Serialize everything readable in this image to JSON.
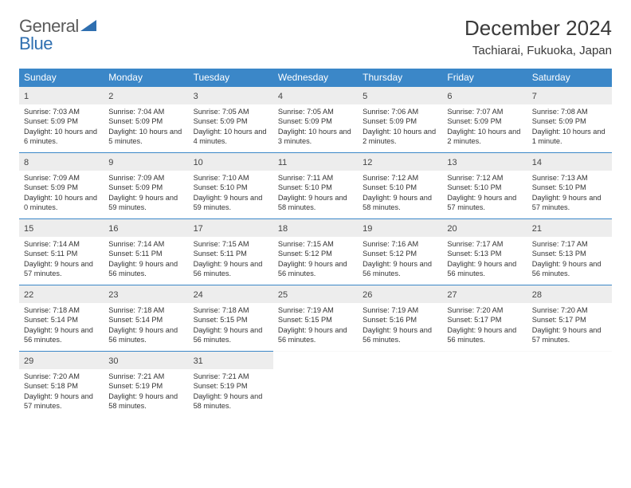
{
  "logo": {
    "text_general": "General",
    "text_blue": "Blue"
  },
  "title": "December 2024",
  "location": "Tachiarai, Fukuoka, Japan",
  "colors": {
    "header_blue": "#3b87c8",
    "daynum_bg": "#ededed",
    "text": "#333333",
    "logo_gray": "#5b5b5b",
    "logo_blue": "#2f6fb0"
  },
  "day_names": [
    "Sunday",
    "Monday",
    "Tuesday",
    "Wednesday",
    "Thursday",
    "Friday",
    "Saturday"
  ],
  "weeks": [
    [
      {
        "n": "1",
        "sr": "Sunrise: 7:03 AM",
        "ss": "Sunset: 5:09 PM",
        "dl": "Daylight: 10 hours and 6 minutes."
      },
      {
        "n": "2",
        "sr": "Sunrise: 7:04 AM",
        "ss": "Sunset: 5:09 PM",
        "dl": "Daylight: 10 hours and 5 minutes."
      },
      {
        "n": "3",
        "sr": "Sunrise: 7:05 AM",
        "ss": "Sunset: 5:09 PM",
        "dl": "Daylight: 10 hours and 4 minutes."
      },
      {
        "n": "4",
        "sr": "Sunrise: 7:05 AM",
        "ss": "Sunset: 5:09 PM",
        "dl": "Daylight: 10 hours and 3 minutes."
      },
      {
        "n": "5",
        "sr": "Sunrise: 7:06 AM",
        "ss": "Sunset: 5:09 PM",
        "dl": "Daylight: 10 hours and 2 minutes."
      },
      {
        "n": "6",
        "sr": "Sunrise: 7:07 AM",
        "ss": "Sunset: 5:09 PM",
        "dl": "Daylight: 10 hours and 2 minutes."
      },
      {
        "n": "7",
        "sr": "Sunrise: 7:08 AM",
        "ss": "Sunset: 5:09 PM",
        "dl": "Daylight: 10 hours and 1 minute."
      }
    ],
    [
      {
        "n": "8",
        "sr": "Sunrise: 7:09 AM",
        "ss": "Sunset: 5:09 PM",
        "dl": "Daylight: 10 hours and 0 minutes."
      },
      {
        "n": "9",
        "sr": "Sunrise: 7:09 AM",
        "ss": "Sunset: 5:09 PM",
        "dl": "Daylight: 9 hours and 59 minutes."
      },
      {
        "n": "10",
        "sr": "Sunrise: 7:10 AM",
        "ss": "Sunset: 5:10 PM",
        "dl": "Daylight: 9 hours and 59 minutes."
      },
      {
        "n": "11",
        "sr": "Sunrise: 7:11 AM",
        "ss": "Sunset: 5:10 PM",
        "dl": "Daylight: 9 hours and 58 minutes."
      },
      {
        "n": "12",
        "sr": "Sunrise: 7:12 AM",
        "ss": "Sunset: 5:10 PM",
        "dl": "Daylight: 9 hours and 58 minutes."
      },
      {
        "n": "13",
        "sr": "Sunrise: 7:12 AM",
        "ss": "Sunset: 5:10 PM",
        "dl": "Daylight: 9 hours and 57 minutes."
      },
      {
        "n": "14",
        "sr": "Sunrise: 7:13 AM",
        "ss": "Sunset: 5:10 PM",
        "dl": "Daylight: 9 hours and 57 minutes."
      }
    ],
    [
      {
        "n": "15",
        "sr": "Sunrise: 7:14 AM",
        "ss": "Sunset: 5:11 PM",
        "dl": "Daylight: 9 hours and 57 minutes."
      },
      {
        "n": "16",
        "sr": "Sunrise: 7:14 AM",
        "ss": "Sunset: 5:11 PM",
        "dl": "Daylight: 9 hours and 56 minutes."
      },
      {
        "n": "17",
        "sr": "Sunrise: 7:15 AM",
        "ss": "Sunset: 5:11 PM",
        "dl": "Daylight: 9 hours and 56 minutes."
      },
      {
        "n": "18",
        "sr": "Sunrise: 7:15 AM",
        "ss": "Sunset: 5:12 PM",
        "dl": "Daylight: 9 hours and 56 minutes."
      },
      {
        "n": "19",
        "sr": "Sunrise: 7:16 AM",
        "ss": "Sunset: 5:12 PM",
        "dl": "Daylight: 9 hours and 56 minutes."
      },
      {
        "n": "20",
        "sr": "Sunrise: 7:17 AM",
        "ss": "Sunset: 5:13 PM",
        "dl": "Daylight: 9 hours and 56 minutes."
      },
      {
        "n": "21",
        "sr": "Sunrise: 7:17 AM",
        "ss": "Sunset: 5:13 PM",
        "dl": "Daylight: 9 hours and 56 minutes."
      }
    ],
    [
      {
        "n": "22",
        "sr": "Sunrise: 7:18 AM",
        "ss": "Sunset: 5:14 PM",
        "dl": "Daylight: 9 hours and 56 minutes."
      },
      {
        "n": "23",
        "sr": "Sunrise: 7:18 AM",
        "ss": "Sunset: 5:14 PM",
        "dl": "Daylight: 9 hours and 56 minutes."
      },
      {
        "n": "24",
        "sr": "Sunrise: 7:18 AM",
        "ss": "Sunset: 5:15 PM",
        "dl": "Daylight: 9 hours and 56 minutes."
      },
      {
        "n": "25",
        "sr": "Sunrise: 7:19 AM",
        "ss": "Sunset: 5:15 PM",
        "dl": "Daylight: 9 hours and 56 minutes."
      },
      {
        "n": "26",
        "sr": "Sunrise: 7:19 AM",
        "ss": "Sunset: 5:16 PM",
        "dl": "Daylight: 9 hours and 56 minutes."
      },
      {
        "n": "27",
        "sr": "Sunrise: 7:20 AM",
        "ss": "Sunset: 5:17 PM",
        "dl": "Daylight: 9 hours and 56 minutes."
      },
      {
        "n": "28",
        "sr": "Sunrise: 7:20 AM",
        "ss": "Sunset: 5:17 PM",
        "dl": "Daylight: 9 hours and 57 minutes."
      }
    ],
    [
      {
        "n": "29",
        "sr": "Sunrise: 7:20 AM",
        "ss": "Sunset: 5:18 PM",
        "dl": "Daylight: 9 hours and 57 minutes."
      },
      {
        "n": "30",
        "sr": "Sunrise: 7:21 AM",
        "ss": "Sunset: 5:19 PM",
        "dl": "Daylight: 9 hours and 58 minutes."
      },
      {
        "n": "31",
        "sr": "Sunrise: 7:21 AM",
        "ss": "Sunset: 5:19 PM",
        "dl": "Daylight: 9 hours and 58 minutes."
      },
      null,
      null,
      null,
      null
    ]
  ]
}
